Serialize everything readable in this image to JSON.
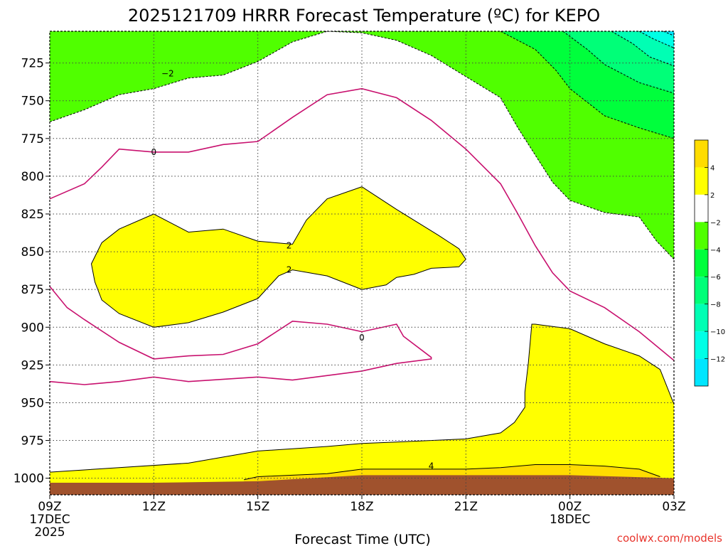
{
  "chart_data": {
    "type": "contour",
    "title": "2025121709 HRRR Forecast Temperature (ºC) for KEPO",
    "xlabel": "Forecast Time (UTC)",
    "source": "coolwx.com/models",
    "x_ticks": [
      {
        "hour": 0,
        "label": "09Z",
        "sub1": "17DEC",
        "sub2": "2025"
      },
      {
        "hour": 3,
        "label": "12Z",
        "sub1": "",
        "sub2": ""
      },
      {
        "hour": 6,
        "label": "15Z",
        "sub1": "",
        "sub2": ""
      },
      {
        "hour": 9,
        "label": "18Z",
        "sub1": "",
        "sub2": ""
      },
      {
        "hour": 12,
        "label": "21Z",
        "sub1": "",
        "sub2": ""
      },
      {
        "hour": 15,
        "label": "00Z",
        "sub1": "18DEC",
        "sub2": ""
      },
      {
        "hour": 18,
        "label": "03Z",
        "sub1": "",
        "sub2": ""
      }
    ],
    "x_range_hours": [
      0,
      18
    ],
    "y_ticks": [
      725,
      750,
      775,
      800,
      825,
      850,
      875,
      900,
      925,
      950,
      975,
      1000
    ],
    "y_range_hpa": [
      704,
      1011
    ],
    "grid": true,
    "colorbar": {
      "placement": "right",
      "entries": [
        {
          "level": 4,
          "label": "4",
          "color": "#ffdc00"
        },
        {
          "level": 2,
          "label": "2",
          "color": "#ffff00"
        },
        {
          "level": -2,
          "label": "−2",
          "color": "#ffffff"
        },
        {
          "level": -4,
          "label": "−4",
          "color": "#50ff00"
        },
        {
          "level": -6,
          "label": "−6",
          "color": "#00ff3c"
        },
        {
          "level": -8,
          "label": "−8",
          "color": "#00ff78"
        },
        {
          "level": -10,
          "label": "−10",
          "color": "#00ffb4"
        },
        {
          "level": -12,
          "label": "−12",
          "color": "#00ffe6"
        },
        {
          "level": -14,
          "label": "",
          "color": "#00e6ff"
        }
      ]
    },
    "colors": {
      "warm4": "#ffdc00",
      "warm2": "#ffff00",
      "cold": "#50ff00",
      "cold6": "#00ff3c",
      "cold8": "#00ff78",
      "cold10": "#00ffb4",
      "cold12": "#00ffe6",
      "cold14": "#00e6ff",
      "freezing_line": "#c8106e",
      "ground": "#a0522d"
    },
    "contour_labels": [
      {
        "text": "−2",
        "hour": 3.4,
        "p": 732
      },
      {
        "text": "0",
        "hour": 3.0,
        "p": 784
      },
      {
        "text": "2",
        "hour": 6.9,
        "p": 846
      },
      {
        "text": "2",
        "hour": 6.9,
        "p": 862
      },
      {
        "text": "0",
        "hour": 9.0,
        "p": 907
      },
      {
        "text": "4",
        "hour": 11.0,
        "p": 992
      }
    ],
    "isotherms": [
      {
        "level": 2,
        "pts": [
          [
            0,
            996
          ],
          [
            2,
            993
          ],
          [
            4,
            990
          ],
          [
            6,
            982
          ],
          [
            8,
            979
          ],
          [
            9,
            977
          ],
          [
            10,
            976
          ],
          [
            12,
            974
          ],
          [
            13,
            970
          ],
          [
            13.4,
            963
          ],
          [
            13.7,
            953
          ],
          [
            13.7,
            943
          ],
          [
            13.8,
            924
          ],
          [
            13.9,
            898
          ],
          [
            14,
            898
          ],
          [
            15,
            901
          ],
          [
            16,
            911
          ],
          [
            17,
            919
          ],
          [
            17.6,
            928
          ],
          [
            18,
            951
          ]
        ]
      },
      {
        "level": 4,
        "pts": [
          [
            5.6,
            1001
          ],
          [
            6,
            999
          ],
          [
            7,
            998
          ],
          [
            8,
            997
          ],
          [
            9,
            994
          ],
          [
            10,
            994
          ],
          [
            12,
            994
          ],
          [
            13,
            993
          ],
          [
            14,
            991
          ],
          [
            15,
            991
          ],
          [
            16,
            992
          ],
          [
            17,
            994
          ],
          [
            17.6,
            999
          ]
        ]
      },
      {
        "level": 2,
        "pts": [
          [
            3,
            825
          ],
          [
            2,
            835
          ],
          [
            1.5,
            844
          ],
          [
            1.2,
            858
          ],
          [
            1.3,
            870
          ],
          [
            1.5,
            882
          ],
          [
            2,
            891
          ],
          [
            3,
            900
          ],
          [
            4,
            897
          ],
          [
            5,
            890
          ],
          [
            6,
            881
          ],
          [
            6.6,
            866
          ],
          [
            7,
            862
          ],
          [
            8,
            866
          ],
          [
            9,
            875
          ],
          [
            9.7,
            872
          ],
          [
            10,
            867
          ],
          [
            10.5,
            865
          ],
          [
            11,
            861
          ],
          [
            11.8,
            860
          ],
          [
            12,
            855
          ],
          [
            11.8,
            848
          ],
          [
            11.2,
            839
          ],
          [
            10,
            822
          ],
          [
            9,
            807
          ],
          [
            8,
            815
          ],
          [
            7.4,
            829
          ],
          [
            7,
            845
          ],
          [
            6,
            843
          ],
          [
            5,
            835
          ],
          [
            4,
            837
          ],
          [
            3,
            825
          ]
        ]
      }
    ],
    "isotherms_neg2": [
      [
        0,
        764
      ],
      [
        1,
        756
      ],
      [
        2,
        746
      ],
      [
        3,
        742
      ],
      [
        4,
        735
      ],
      [
        5,
        733
      ],
      [
        6,
        724
      ],
      [
        7,
        711
      ],
      [
        8,
        704
      ],
      [
        9,
        705
      ],
      [
        10,
        710
      ],
      [
        11,
        720
      ],
      [
        12,
        734
      ],
      [
        13,
        748
      ],
      [
        13.5,
        768
      ],
      [
        14,
        786
      ],
      [
        14.5,
        804
      ],
      [
        15,
        816
      ],
      [
        16,
        824
      ],
      [
        17,
        827
      ],
      [
        17.5,
        843
      ],
      [
        18,
        855
      ]
    ],
    "freezing_line": [
      [
        0,
        815
      ],
      [
        1,
        805
      ],
      [
        1.5,
        794
      ],
      [
        2,
        782
      ],
      [
        3,
        784
      ],
      [
        4,
        784
      ],
      [
        5,
        779
      ],
      [
        6,
        777
      ],
      [
        7,
        761
      ],
      [
        8,
        746
      ],
      [
        9,
        742
      ],
      [
        10,
        748
      ],
      [
        11,
        763
      ],
      [
        12,
        782
      ],
      [
        13,
        805
      ],
      [
        13.5,
        825
      ],
      [
        14,
        846
      ],
      [
        14.5,
        864
      ],
      [
        15,
        876
      ],
      [
        16,
        887
      ],
      [
        17,
        903
      ],
      [
        18,
        922
      ]
    ],
    "freezing_line_low": [
      [
        0,
        873
      ],
      [
        0.5,
        887
      ],
      [
        1,
        895
      ],
      [
        2,
        910
      ],
      [
        3,
        921
      ],
      [
        4,
        919
      ],
      [
        5,
        918
      ],
      [
        6,
        911
      ],
      [
        7,
        896
      ],
      [
        8,
        898
      ],
      [
        9,
        903
      ],
      [
        10,
        898
      ],
      [
        10.2,
        906
      ],
      [
        11,
        920
      ],
      [
        11,
        921
      ],
      [
        10,
        924
      ],
      [
        9,
        929
      ],
      [
        7,
        935
      ],
      [
        6,
        933
      ],
      [
        4,
        936
      ],
      [
        3,
        933
      ],
      [
        2,
        936
      ],
      [
        1,
        938
      ],
      [
        0,
        936
      ]
    ]
  }
}
